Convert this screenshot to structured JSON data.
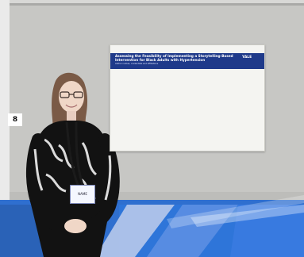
{
  "poster": {
    "title": "Assessing the Feasibility of Implementing a Storytelling-Based Intervention for Black Adults with Hypertension",
    "authors": "Author names, credentials and affiliations",
    "logo": "YALE"
  },
  "badge": {
    "text": "NAME"
  },
  "booth": {
    "number": "8"
  },
  "colors": {
    "poster_header": "#1f3a8a",
    "board_gray": "#c9c9c9",
    "floor_blue": "#2f6fcf"
  }
}
